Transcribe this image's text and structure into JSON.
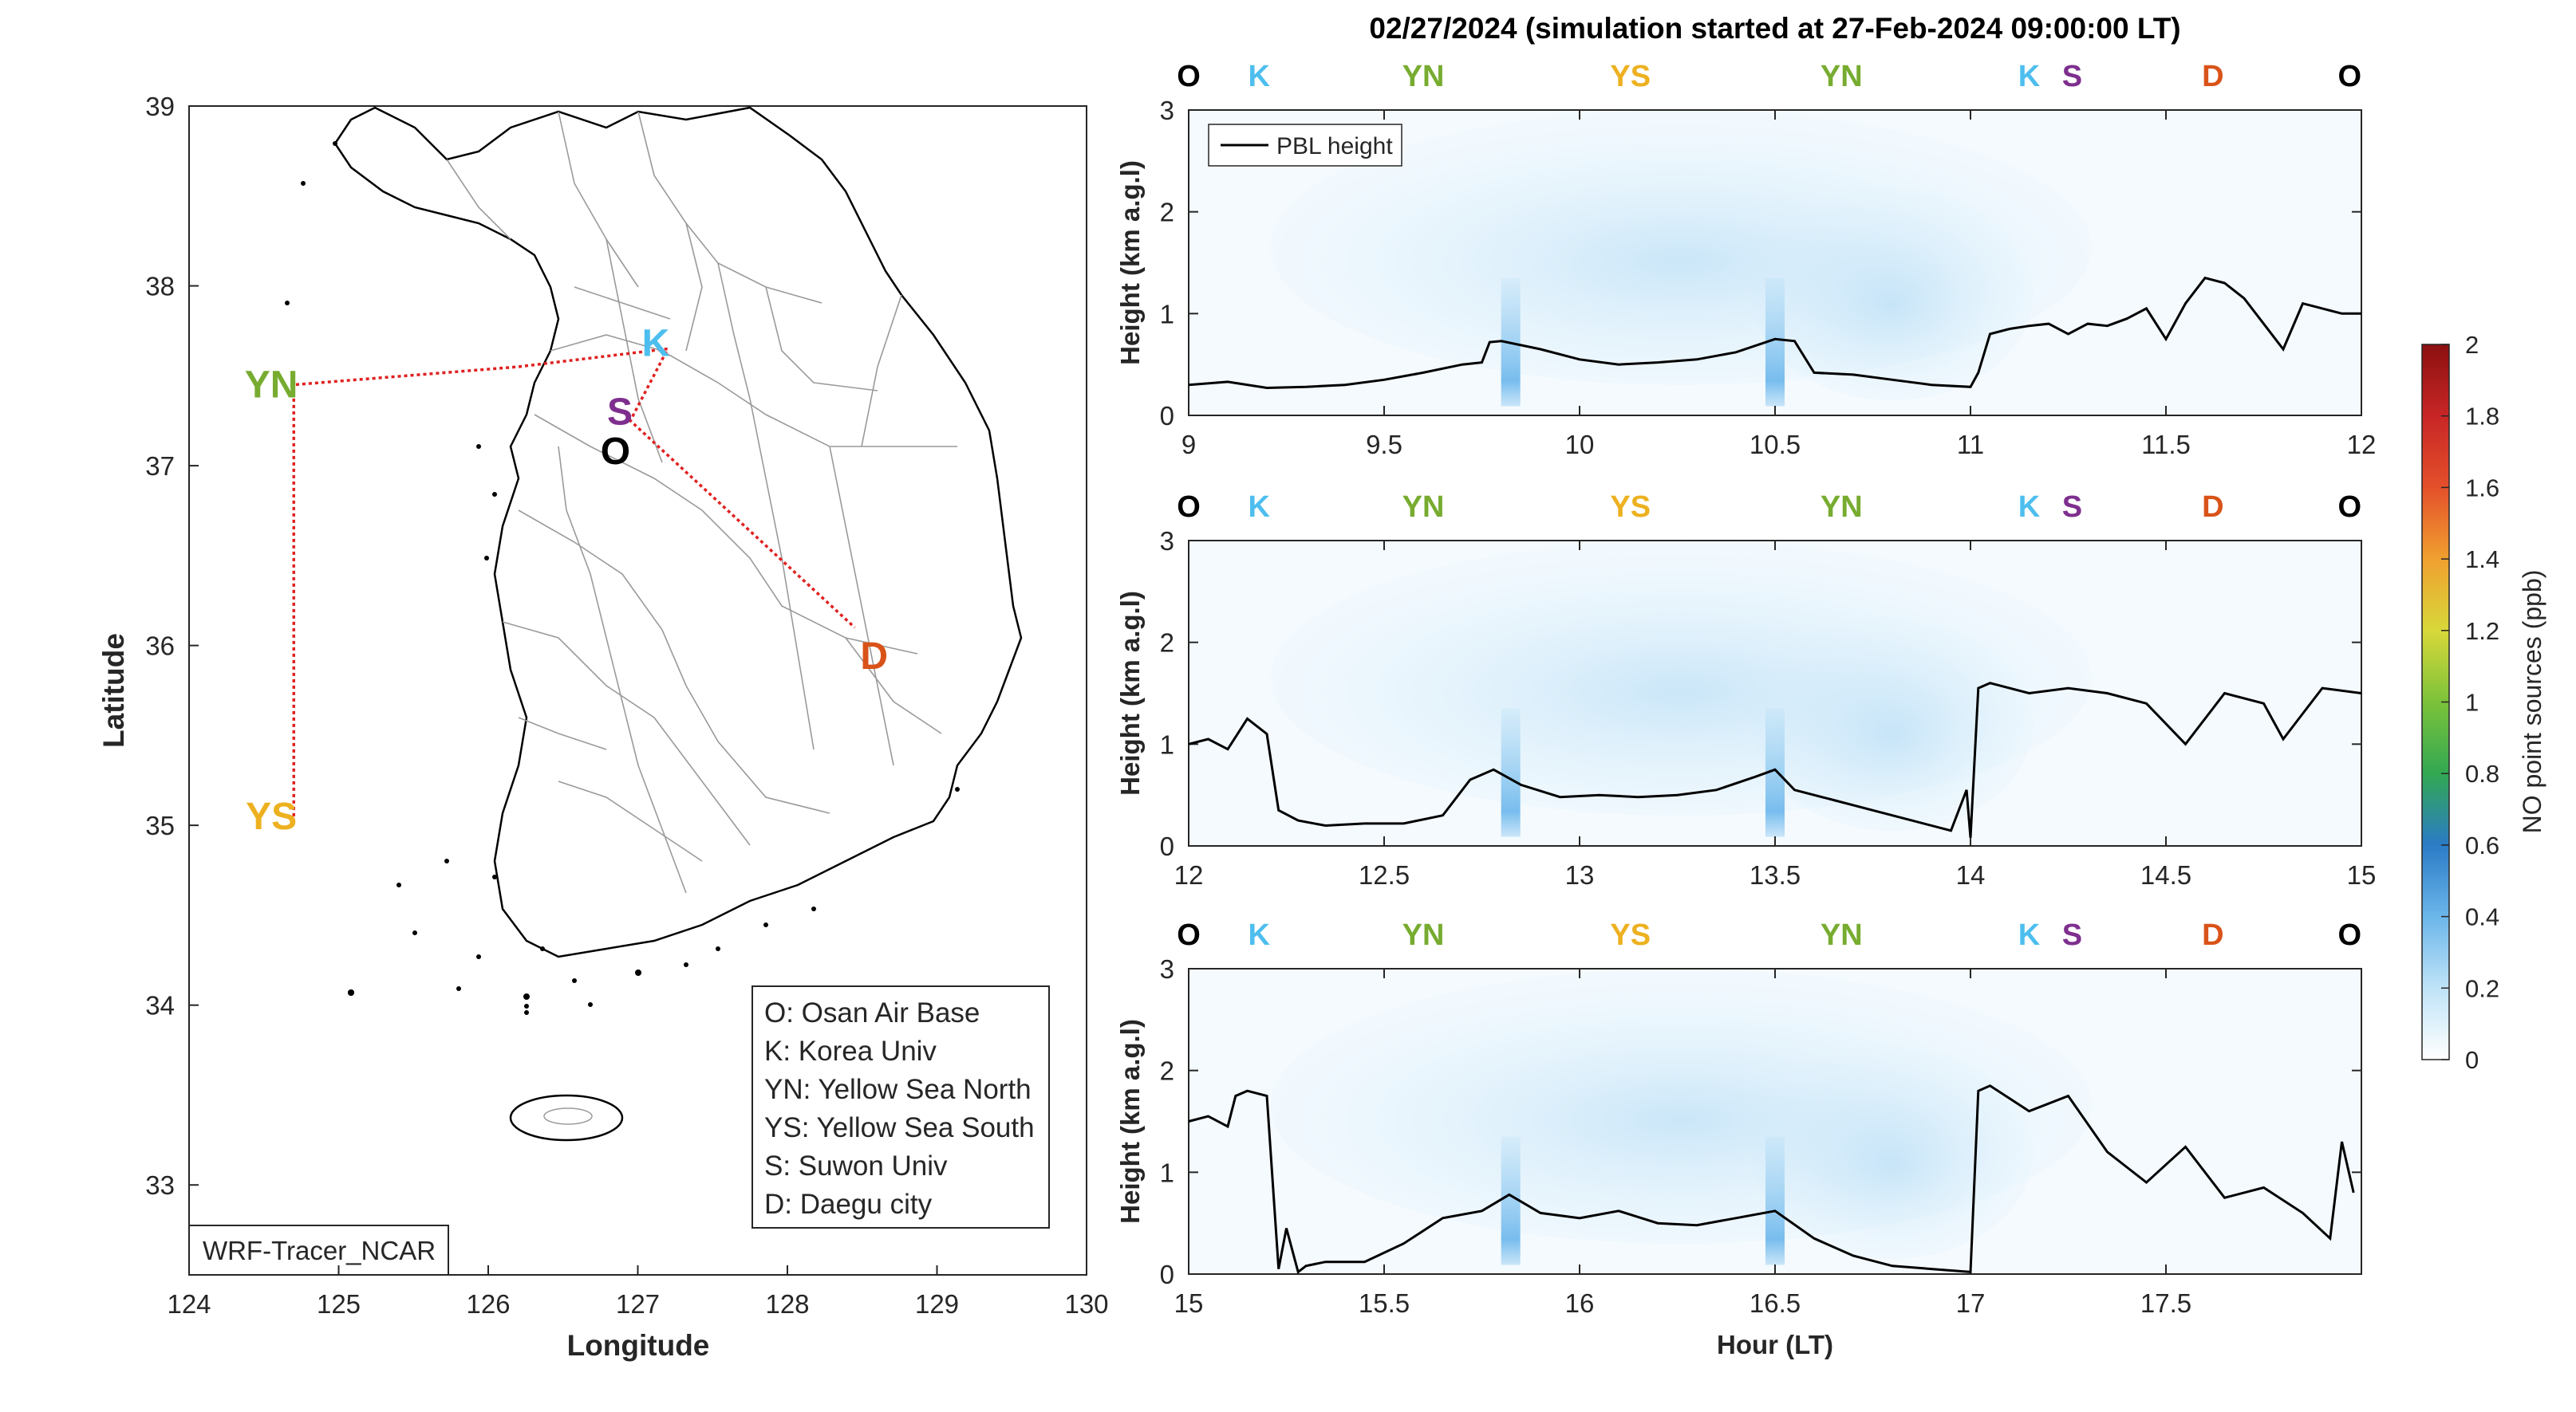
{
  "title": "02/27/2024 (simulation started at 27-Feb-2024 09:00:00 LT)",
  "colors": {
    "O": "#000000",
    "K": "#4DBEEE",
    "YN": "#77AC30",
    "YS": "#EDB120",
    "S": "#7E2F8E",
    "D": "#D95319",
    "route": "#E02020",
    "pbl": "#000000",
    "field": "#BFE3F7"
  },
  "map": {
    "type": "map",
    "xlabel": "Longitude",
    "ylabel": "Latitude",
    "xlim": [
      124,
      130
    ],
    "ylim": [
      32.5,
      39
    ],
    "xticks": [
      "124",
      "125",
      "126",
      "127",
      "128",
      "129",
      "130"
    ],
    "yticks": [
      "33",
      "34",
      "35",
      "36",
      "37",
      "38",
      "39"
    ],
    "source_label": "WRF-Tracer_NCAR",
    "sites": [
      {
        "id": "O",
        "lon": 126.85,
        "lat": 37.08
      },
      {
        "id": "K",
        "lon": 127.12,
        "lat": 37.68
      },
      {
        "id": "S",
        "lon": 126.88,
        "lat": 37.3
      },
      {
        "id": "D",
        "lon": 128.58,
        "lat": 35.94
      },
      {
        "id": "YN",
        "lon": 124.55,
        "lat": 37.45
      },
      {
        "id": "YS",
        "lon": 124.55,
        "lat": 35.05
      }
    ],
    "route": [
      {
        "lon": 124.7,
        "lat": 35.05
      },
      {
        "lon": 124.7,
        "lat": 37.45
      },
      {
        "lon": 126.2,
        "lat": 37.55
      },
      {
        "lon": 127.2,
        "lat": 37.65
      },
      {
        "lon": 126.95,
        "lat": 37.25
      },
      {
        "lon": 128.45,
        "lat": 36.1
      }
    ],
    "legend": [
      "O: Osan Air Base",
      "K: Korea Univ",
      "YN: Yellow Sea North",
      "YS: Yellow Sea South",
      "S: Suwon Univ",
      "D: Daegu city"
    ]
  },
  "chart_data": [
    {
      "type": "line",
      "panel": 1,
      "xlim": [
        9,
        12
      ],
      "ylim": [
        0,
        3
      ],
      "xticks": [
        "9",
        "9.5",
        "10",
        "10.5",
        "11",
        "11.5",
        "12"
      ],
      "yticks": [
        "0",
        "1",
        "2",
        "3"
      ],
      "ylabel": "Height (km a.g.l)",
      "xlabel": "",
      "legend": "PBL height",
      "site_labels": [
        {
          "id": "O",
          "x": 9.0
        },
        {
          "id": "K",
          "x": 9.18
        },
        {
          "id": "YN",
          "x": 9.6
        },
        {
          "id": "YS",
          "x": 10.13
        },
        {
          "id": "YN",
          "x": 10.67
        },
        {
          "id": "K",
          "x": 11.15
        },
        {
          "id": "S",
          "x": 11.26
        },
        {
          "id": "D",
          "x": 11.62
        },
        {
          "id": "O",
          "x": 11.97
        }
      ],
      "series": [
        {
          "x": [
            9.0,
            9.1,
            9.2,
            9.3,
            9.4,
            9.5,
            9.6,
            9.7,
            9.75,
            9.77,
            9.8,
            9.9,
            10.0,
            10.1,
            10.2,
            10.3,
            10.4,
            10.5,
            10.55,
            10.6,
            10.7,
            10.8,
            10.9,
            11.0,
            11.02,
            11.05,
            11.1,
            11.15,
            11.2,
            11.25,
            11.3,
            11.35,
            11.4,
            11.45,
            11.5,
            11.55,
            11.6,
            11.65,
            11.7,
            11.75,
            11.8,
            11.85,
            11.9,
            11.95,
            12.0
          ],
          "y": [
            0.3,
            0.33,
            0.27,
            0.28,
            0.3,
            0.35,
            0.42,
            0.5,
            0.52,
            0.72,
            0.73,
            0.65,
            0.55,
            0.5,
            0.52,
            0.55,
            0.62,
            0.75,
            0.73,
            0.42,
            0.4,
            0.35,
            0.3,
            0.28,
            0.42,
            0.8,
            0.85,
            0.88,
            0.9,
            0.8,
            0.9,
            0.88,
            0.95,
            1.05,
            0.75,
            1.1,
            1.35,
            1.3,
            1.15,
            0.9,
            0.65,
            1.1,
            1.05,
            1.0,
            1.0
          ]
        }
      ]
    },
    {
      "type": "line",
      "panel": 2,
      "xlim": [
        12,
        15
      ],
      "ylim": [
        0,
        3
      ],
      "xticks": [
        "12",
        "12.5",
        "13",
        "13.5",
        "14",
        "14.5",
        "15"
      ],
      "yticks": [
        "0",
        "1",
        "2",
        "3"
      ],
      "ylabel": "Height (km a.g.l)",
      "xlabel": "",
      "site_labels": [
        {
          "id": "O",
          "x": 12.0
        },
        {
          "id": "K",
          "x": 12.18
        },
        {
          "id": "YN",
          "x": 12.6
        },
        {
          "id": "YS",
          "x": 13.13
        },
        {
          "id": "YN",
          "x": 13.67
        },
        {
          "id": "K",
          "x": 14.15
        },
        {
          "id": "S",
          "x": 14.26
        },
        {
          "id": "D",
          "x": 14.62
        },
        {
          "id": "O",
          "x": 14.97
        }
      ],
      "series": [
        {
          "x": [
            12.0,
            12.05,
            12.1,
            12.15,
            12.2,
            12.23,
            12.28,
            12.35,
            12.45,
            12.55,
            12.65,
            12.72,
            12.78,
            12.85,
            12.95,
            13.05,
            13.15,
            13.25,
            13.35,
            13.45,
            13.5,
            13.55,
            13.65,
            13.75,
            13.85,
            13.95,
            13.99,
            14.0,
            14.02,
            14.05,
            14.15,
            14.25,
            14.35,
            14.45,
            14.55,
            14.65,
            14.75,
            14.8,
            14.85,
            14.9,
            15.0
          ],
          "y": [
            1.0,
            1.05,
            0.95,
            1.25,
            1.1,
            0.35,
            0.25,
            0.2,
            0.22,
            0.22,
            0.3,
            0.65,
            0.75,
            0.6,
            0.48,
            0.5,
            0.48,
            0.5,
            0.55,
            0.68,
            0.75,
            0.55,
            0.45,
            0.35,
            0.25,
            0.15,
            0.55,
            0.08,
            1.55,
            1.6,
            1.5,
            1.55,
            1.5,
            1.4,
            1.0,
            1.5,
            1.4,
            1.05,
            1.3,
            1.55,
            1.5
          ]
        }
      ]
    },
    {
      "type": "line",
      "panel": 3,
      "xlim": [
        15,
        18
      ],
      "ylim": [
        0,
        3
      ],
      "xticks": [
        "15",
        "15.5",
        "16",
        "16.5",
        "17",
        "17.5"
      ],
      "yticks": [
        "0",
        "1",
        "2",
        "3"
      ],
      "ylabel": "Height (km a.g.l)",
      "xlabel": "Hour (LT)",
      "site_labels": [
        {
          "id": "O",
          "x": 15.0
        },
        {
          "id": "K",
          "x": 15.18
        },
        {
          "id": "YN",
          "x": 15.6
        },
        {
          "id": "YS",
          "x": 16.13
        },
        {
          "id": "YN",
          "x": 16.67
        },
        {
          "id": "K",
          "x": 17.15
        },
        {
          "id": "S",
          "x": 17.26
        },
        {
          "id": "D",
          "x": 17.62
        },
        {
          "id": "O",
          "x": 17.97
        }
      ],
      "series": [
        {
          "x": [
            15.0,
            15.05,
            15.1,
            15.12,
            15.15,
            15.2,
            15.23,
            15.25,
            15.28,
            15.3,
            15.35,
            15.45,
            15.55,
            15.65,
            15.75,
            15.82,
            15.9,
            16.0,
            16.1,
            16.2,
            16.3,
            16.4,
            16.5,
            16.6,
            16.7,
            16.8,
            16.9,
            17.0,
            17.02,
            17.05,
            17.15,
            17.25,
            17.35,
            17.45,
            17.55,
            17.65,
            17.75,
            17.85,
            17.92,
            17.95,
            17.98
          ],
          "y": [
            1.5,
            1.55,
            1.45,
            1.75,
            1.8,
            1.75,
            0.05,
            0.45,
            0.02,
            0.08,
            0.12,
            0.12,
            0.3,
            0.55,
            0.62,
            0.78,
            0.6,
            0.55,
            0.62,
            0.5,
            0.48,
            0.55,
            0.62,
            0.35,
            0.18,
            0.08,
            0.05,
            0.02,
            1.8,
            1.85,
            1.6,
            1.75,
            1.2,
            0.9,
            1.25,
            0.75,
            0.85,
            0.6,
            0.35,
            1.3,
            0.8
          ]
        }
      ]
    }
  ],
  "colorbar": {
    "label": "NO point sources (ppb)",
    "ticks": [
      "0",
      "0.2",
      "0.4",
      "0.6",
      "0.8",
      "1",
      "1.2",
      "1.4",
      "1.6",
      "1.8",
      "2"
    ],
    "range": [
      0,
      2
    ],
    "stops": [
      "#ffffff",
      "#BFE3F7",
      "#6BB6EA",
      "#2B7BC6",
      "#32A852",
      "#7CC23A",
      "#D8D83A",
      "#F0A030",
      "#E4502A",
      "#C82626",
      "#8B1010"
    ]
  }
}
